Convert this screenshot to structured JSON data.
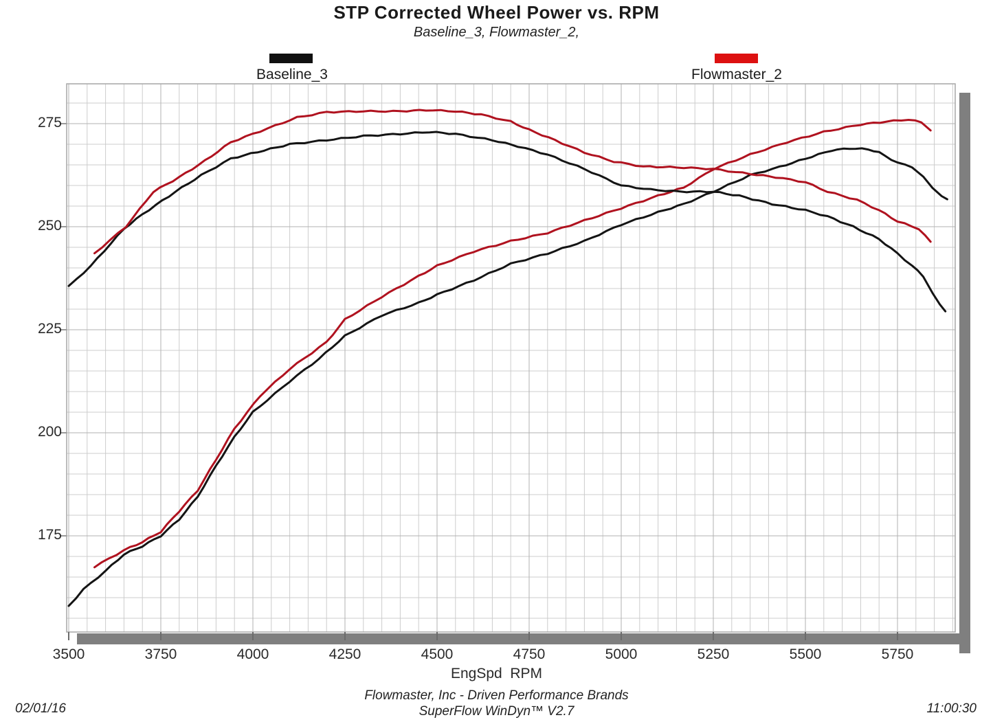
{
  "page": {
    "title": "STP Corrected Wheel Power vs. RPM",
    "subtitle": "Baseline_3, Flowmaster_2,",
    "date": "02/01/16",
    "time": "11:00:30"
  },
  "footer": {
    "line1": "Flowmaster, Inc - Driven Performance Brands",
    "line2": "SuperFlow WinDyn™ V2.7"
  },
  "legend": [
    {
      "label": "Baseline_3",
      "color": "#111111"
    },
    {
      "label": "Flowmaster_2",
      "color": "#dd1111"
    }
  ],
  "axes": {
    "x_label": "EngSpd  RPM",
    "x_ticks": [
      3500,
      3750,
      4000,
      4250,
      4500,
      4750,
      5000,
      5250,
      5500,
      5750
    ],
    "y_ticks": [
      275,
      250,
      225,
      200,
      175
    ]
  },
  "colors": {
    "baseline_curve": "#141414",
    "flowmaster_curve": "#b0121f",
    "grid_minor": "#cccccc",
    "grid_major": "#b2b2b2",
    "frame": "#a6a6a6",
    "shadow": "#7f7f7f",
    "tick": "#6b6b6b"
  },
  "chart_data": {
    "type": "line",
    "title": "STP Corrected Wheel Power vs. RPM",
    "subtitle": "Baseline_3, Flowmaster_2,",
    "xlabel": "EngSpd RPM",
    "ylabel": "",
    "xlim": [
      3494,
      5907
    ],
    "ylim": [
      152,
      285
    ],
    "x_ticks": [
      3500,
      3750,
      4000,
      4250,
      4500,
      4750,
      5000,
      5250,
      5500,
      5750
    ],
    "y_ticks": [
      175,
      200,
      225,
      250,
      275
    ],
    "grid": "minor grid: 50 RPM horizontal, 5 units vertical; light gray",
    "legend_position": "top",
    "series": [
      {
        "name": "Baseline_3 rising curve",
        "run": "Baseline_3",
        "color_key": "baseline_curve",
        "points": [
          [
            3500,
            158
          ],
          [
            3540,
            162
          ],
          [
            3600,
            166.5
          ],
          [
            3650,
            170.5
          ],
          [
            3700,
            172.5
          ],
          [
            3750,
            175
          ],
          [
            3800,
            179
          ],
          [
            3850,
            184.5
          ],
          [
            3900,
            192
          ],
          [
            3950,
            199
          ],
          [
            4000,
            205
          ],
          [
            4100,
            212.5
          ],
          [
            4180,
            218
          ],
          [
            4250,
            223.5
          ],
          [
            4350,
            228.5
          ],
          [
            4450,
            231.5
          ],
          [
            4500,
            233.5
          ],
          [
            4600,
            237
          ],
          [
            4700,
            241
          ],
          [
            4800,
            243.5
          ],
          [
            4900,
            246.5
          ],
          [
            5000,
            250.5
          ],
          [
            5100,
            253.5
          ],
          [
            5170,
            255.5
          ],
          [
            5250,
            258.5
          ],
          [
            5350,
            262.5
          ],
          [
            5430,
            264.5
          ],
          [
            5500,
            266.5
          ],
          [
            5570,
            268.5
          ],
          [
            5620,
            269
          ],
          [
            5670,
            268.8
          ],
          [
            5700,
            268
          ],
          [
            5750,
            265.5
          ],
          [
            5790,
            264.5
          ],
          [
            5820,
            262
          ],
          [
            5845,
            259.5
          ],
          [
            5870,
            257.5
          ],
          [
            5885,
            256.5
          ]
        ]
      },
      {
        "name": "Flowmaster_2 rising curve",
        "run": "Flowmaster_2",
        "color_key": "flowmaster_curve",
        "points": [
          [
            3570,
            167.5
          ],
          [
            3650,
            171.5
          ],
          [
            3700,
            173.5
          ],
          [
            3750,
            176
          ],
          [
            3800,
            181
          ],
          [
            3850,
            186
          ],
          [
            3900,
            193.5
          ],
          [
            3950,
            201
          ],
          [
            4020,
            209
          ],
          [
            4100,
            215.5
          ],
          [
            4200,
            222
          ],
          [
            4250,
            227.5
          ],
          [
            4350,
            233
          ],
          [
            4450,
            238
          ],
          [
            4500,
            240.5
          ],
          [
            4600,
            244
          ],
          [
            4700,
            246.5
          ],
          [
            4800,
            248.5
          ],
          [
            4900,
            251.5
          ],
          [
            5000,
            254.5
          ],
          [
            5100,
            257.5
          ],
          [
            5170,
            259.5
          ],
          [
            5250,
            264
          ],
          [
            5350,
            267.5
          ],
          [
            5450,
            270.5
          ],
          [
            5550,
            273
          ],
          [
            5650,
            274.8
          ],
          [
            5720,
            275.5
          ],
          [
            5780,
            276
          ],
          [
            5815,
            275.3
          ],
          [
            5840,
            273.5
          ]
        ]
      },
      {
        "name": "Baseline_3 falling curve",
        "run": "Baseline_3",
        "color_key": "baseline_curve",
        "points": [
          [
            3500,
            235.5
          ],
          [
            3560,
            240.5
          ],
          [
            3650,
            249.5
          ],
          [
            3700,
            253
          ],
          [
            3790,
            258.5
          ],
          [
            3860,
            262.5
          ],
          [
            3940,
            266.5
          ],
          [
            4030,
            268.5
          ],
          [
            4100,
            270
          ],
          [
            4200,
            271
          ],
          [
            4300,
            272
          ],
          [
            4400,
            272.5
          ],
          [
            4480,
            273
          ],
          [
            4550,
            272.5
          ],
          [
            4650,
            271
          ],
          [
            4720,
            269.5
          ],
          [
            4800,
            267.5
          ],
          [
            4900,
            264
          ],
          [
            5000,
            260
          ],
          [
            5080,
            259
          ],
          [
            5160,
            258.5
          ],
          [
            5250,
            258.5
          ],
          [
            5320,
            257.5
          ],
          [
            5410,
            255.5
          ],
          [
            5500,
            254
          ],
          [
            5560,
            252.5
          ],
          [
            5630,
            250
          ],
          [
            5700,
            247
          ],
          [
            5750,
            243.5
          ],
          [
            5790,
            240.5
          ],
          [
            5820,
            238
          ],
          [
            5845,
            234
          ],
          [
            5865,
            231
          ],
          [
            5880,
            229.5
          ]
        ]
      },
      {
        "name": "Flowmaster_2 falling curve",
        "run": "Flowmaster_2",
        "color_key": "flowmaster_curve",
        "points": [
          [
            3570,
            243.5
          ],
          [
            3655,
            250
          ],
          [
            3730,
            258.5
          ],
          [
            3800,
            262
          ],
          [
            3870,
            266
          ],
          [
            3940,
            270.5
          ],
          [
            4000,
            272.5
          ],
          [
            4060,
            274.5
          ],
          [
            4120,
            276.5
          ],
          [
            4200,
            277.8
          ],
          [
            4300,
            278
          ],
          [
            4400,
            278
          ],
          [
            4470,
            278.3
          ],
          [
            4550,
            278
          ],
          [
            4620,
            277.2
          ],
          [
            4700,
            275.5
          ],
          [
            4750,
            273.5
          ],
          [
            4820,
            271
          ],
          [
            4900,
            268
          ],
          [
            4980,
            265.8
          ],
          [
            5060,
            264.6
          ],
          [
            5150,
            264.4
          ],
          [
            5250,
            264
          ],
          [
            5350,
            262.8
          ],
          [
            5420,
            262
          ],
          [
            5500,
            260.8
          ],
          [
            5560,
            258.5
          ],
          [
            5640,
            256.5
          ],
          [
            5700,
            254
          ],
          [
            5750,
            251.3
          ],
          [
            5808,
            249.5
          ],
          [
            5825,
            247.8
          ],
          [
            5840,
            246.3
          ]
        ]
      }
    ]
  }
}
